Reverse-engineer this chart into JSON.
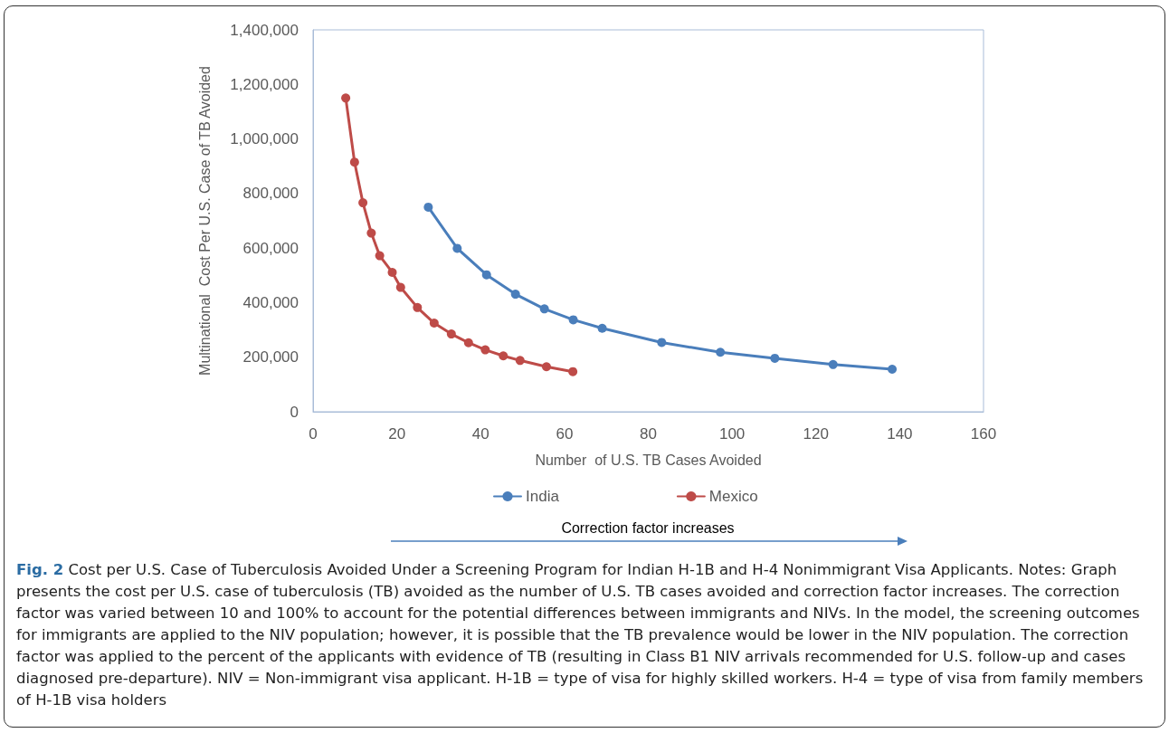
{
  "chart_data": {
    "type": "line",
    "title": "Fig. 2",
    "xlabel": "Number  of U.S. TB Cases Avoided",
    "ylabel": "Multinational  Cost Per U.S. Case of TB Avoided",
    "series": [
      {
        "name": "India",
        "color": "#4a7ebb",
        "x": [
          27.5,
          34.4,
          41.4,
          48.3,
          55.2,
          62.1,
          69.0,
          83.2,
          97.2,
          110.2,
          124.1,
          138.2
        ],
        "values": [
          750000,
          599000,
          502000,
          431000,
          377000,
          337000,
          306000,
          254000,
          218000,
          196000,
          173000,
          156000
        ]
      },
      {
        "name": "Mexico",
        "color": "#be4b48",
        "x": [
          7.8,
          9.9,
          11.9,
          13.9,
          15.9,
          18.9,
          20.9,
          24.9,
          28.9,
          33.0,
          37.1,
          41.1,
          45.4,
          49.4,
          55.7,
          62.0
        ],
        "values": [
          1150000,
          915000,
          766000,
          655000,
          572000,
          511000,
          456000,
          382000,
          325000,
          285000,
          253000,
          227000,
          205000,
          188000,
          165000,
          147000
        ]
      }
    ],
    "xlim": [
      0,
      160
    ],
    "xticks": [
      0,
      20,
      40,
      60,
      80,
      100,
      120,
      140,
      160
    ],
    "ylim": [
      0,
      1400000
    ],
    "yticks": [
      0,
      {
        "value": 200000,
        "label": "200,000"
      },
      {
        "value": 400000,
        "label": "400,000"
      },
      {
        "value": 600000,
        "label": "600,000"
      },
      {
        "value": 800000,
        "label": "800,000"
      },
      {
        "value": 1000000,
        "label": "1,000,000"
      },
      {
        "value": 1200000,
        "label": "1,200,000"
      },
      {
        "value": 1400000,
        "label": "1,400,000"
      }
    ],
    "grid": false,
    "legend": "bottom",
    "marker": "circle",
    "line_style": "solid",
    "annotations": [
      "Correction factor increases",
      "Cost per U.S. Case of Tuberculosis Avoided Under a Screening Program for Indian H-1B and H-4 Nonimmigrant Visa Applicants. Notes: Graph presents the cost per U.S. case of tuberculosis (TB) avoided as the number of U.S. TB cases avoided and correction factor increases. The correction factor was varied between 10 and 100% to account for the potential differences between immigrants and NIVs. In the model, the screening outcomes for immigrants are applied to the NIV population; however, it is possible that the TB prevalence would be lower in the NIV population. The correction factor was applied to the percent of the applicants with evidence of TB (resulting in Class B1 NIV arrivals recommended for U.S. follow-up and cases diagnosed pre-departure). NIV = Non-immigrant visa applicant. H-1B = type of visa for highly skilled workers. H-4 = type of visa from family members of H-1B visa holders"
    ]
  }
}
